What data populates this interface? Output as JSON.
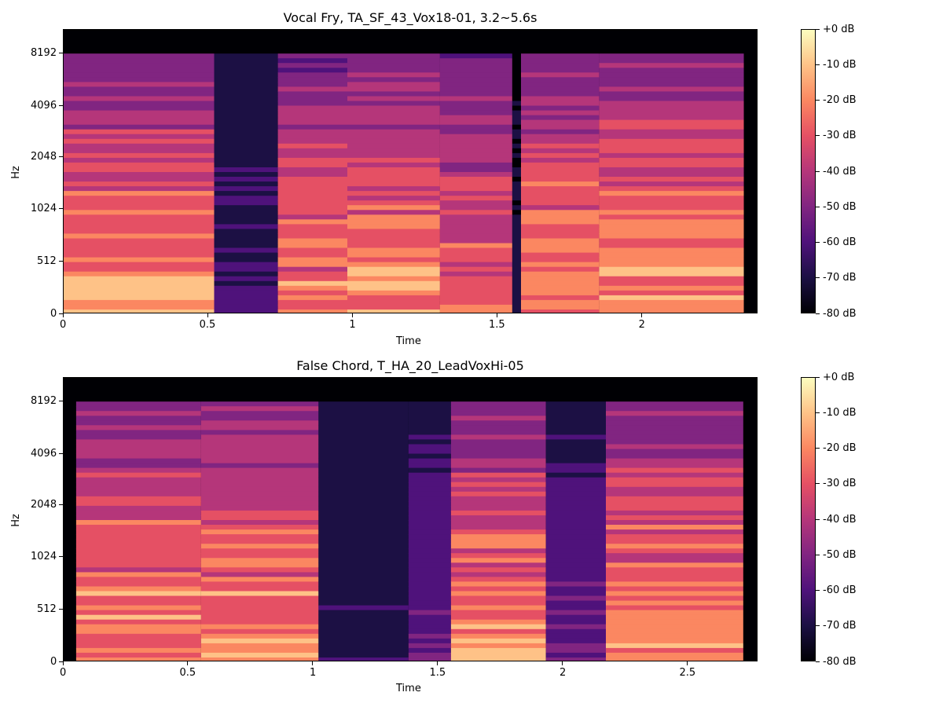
{
  "chart_data": [
    {
      "type": "heatmap",
      "title": "Vocal Fry, TA_SF_43_Vox18-01, 3.2~5.6s",
      "xlabel": "Time",
      "ylabel": "Hz",
      "x_ticks": [
        "0",
        "0.5",
        "1",
        "1.5",
        "2"
      ],
      "x_tick_values": [
        0,
        0.5,
        1,
        1.5,
        2
      ],
      "xlim": [
        0,
        2.4
      ],
      "y_ticks": [
        "0",
        "512",
        "1024",
        "2048",
        "4096",
        "8192"
      ],
      "y_scale": "mel",
      "colorbar_ticks": [
        "+0 dB",
        "-10 dB",
        "-20 dB",
        "-30 dB",
        "-40 dB",
        "-50 dB",
        "-60 dB",
        "-70 dB",
        "-80 dB"
      ],
      "colormap": "magma",
      "value_range_db": [
        -80,
        0
      ],
      "segments": [
        {
          "t0": 0.0,
          "t1": 0.52,
          "level": 0.85
        },
        {
          "t0": 0.52,
          "t1": 0.74,
          "level": 0.25
        },
        {
          "t0": 0.74,
          "t1": 0.98,
          "level": 0.8
        },
        {
          "t0": 0.98,
          "t1": 1.3,
          "level": 0.85
        },
        {
          "t0": 1.3,
          "t1": 1.55,
          "level": 0.75
        },
        {
          "t0": 1.55,
          "t1": 1.58,
          "level": 0.1
        },
        {
          "t0": 1.58,
          "t1": 1.85,
          "level": 0.85
        },
        {
          "t0": 1.85,
          "t1": 2.35,
          "level": 0.85
        },
        {
          "t0": 2.35,
          "t1": 2.4,
          "level": 0.05
        }
      ]
    },
    {
      "type": "heatmap",
      "title": "False Chord, T_HA_20_LeadVoxHi-05",
      "xlabel": "Time",
      "ylabel": "Hz",
      "x_ticks": [
        "0",
        "0.5",
        "1",
        "1.5",
        "2",
        "2.5"
      ],
      "x_tick_values": [
        0,
        0.5,
        1,
        1.5,
        2,
        2.5
      ],
      "xlim": [
        0,
        2.78
      ],
      "y_ticks": [
        "0",
        "512",
        "1024",
        "2048",
        "4096",
        "8192"
      ],
      "y_scale": "mel",
      "colorbar_ticks": [
        "+0 dB",
        "-10 dB",
        "-20 dB",
        "-30 dB",
        "-40 dB",
        "-50 dB",
        "-60 dB",
        "-70 dB",
        "-80 dB"
      ],
      "colormap": "magma",
      "value_range_db": [
        -80,
        0
      ],
      "segments": [
        {
          "t0": 0.0,
          "t1": 0.05,
          "level": 0.05
        },
        {
          "t0": 0.05,
          "t1": 0.55,
          "level": 0.85
        },
        {
          "t0": 0.55,
          "t1": 1.02,
          "level": 0.85
        },
        {
          "t0": 1.02,
          "t1": 1.38,
          "level": 0.2
        },
        {
          "t0": 1.38,
          "t1": 1.55,
          "level": 0.35
        },
        {
          "t0": 1.55,
          "t1": 1.93,
          "level": 0.85
        },
        {
          "t0": 1.93,
          "t1": 2.17,
          "level": 0.35
        },
        {
          "t0": 2.17,
          "t1": 2.72,
          "level": 0.85
        },
        {
          "t0": 2.72,
          "t1": 2.78,
          "level": 0.05
        }
      ]
    }
  ]
}
